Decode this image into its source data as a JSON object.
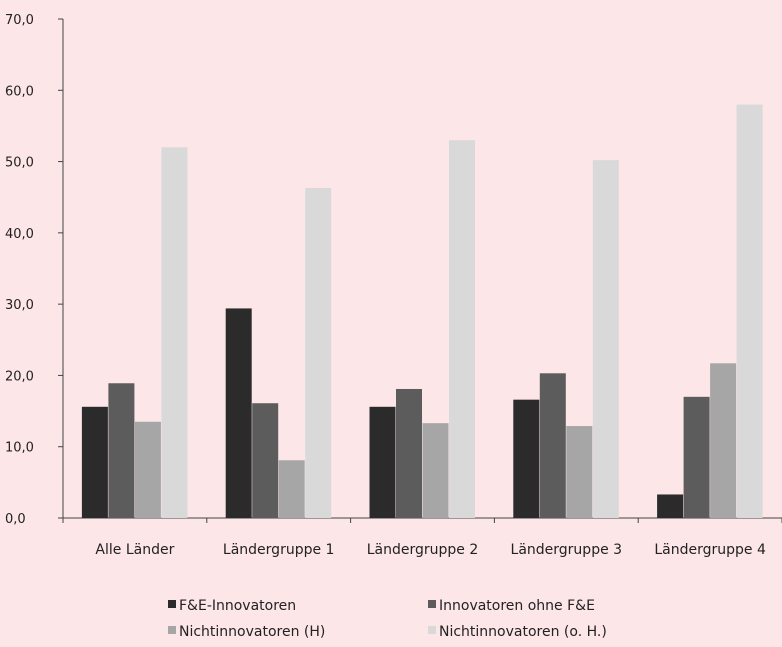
{
  "chart_data": {
    "type": "bar",
    "categories": [
      "Alle Länder",
      "Ländergruppe 1",
      "Ländergruppe 2",
      "Ländergruppe 3",
      "Ländergruppe 4"
    ],
    "series": [
      {
        "name": "F&E-Innovatoren",
        "color": "#2b2b2b",
        "values": [
          15.6,
          29.4,
          15.6,
          16.6,
          3.3
        ]
      },
      {
        "name": "Innovatoren ohne F&E",
        "color": "#5c5c5c",
        "values": [
          18.9,
          16.1,
          18.1,
          20.3,
          17.0
        ]
      },
      {
        "name": "Nichtinnovatoren (H)",
        "color": "#a6a6a6",
        "values": [
          13.5,
          8.1,
          13.3,
          12.9,
          21.7
        ]
      },
      {
        "name": "Nichtinnovatoren (o. H.)",
        "color": "#d9d9d9",
        "values": [
          52.0,
          46.3,
          53.0,
          50.2,
          58.0
        ]
      }
    ],
    "yticks": [
      "0,0",
      "10,0",
      "20,0",
      "30,0",
      "40,0",
      "50,0",
      "60,0",
      "70,0"
    ],
    "ylim": [
      0,
      70
    ],
    "legend_position": "bottom",
    "grid": false
  }
}
